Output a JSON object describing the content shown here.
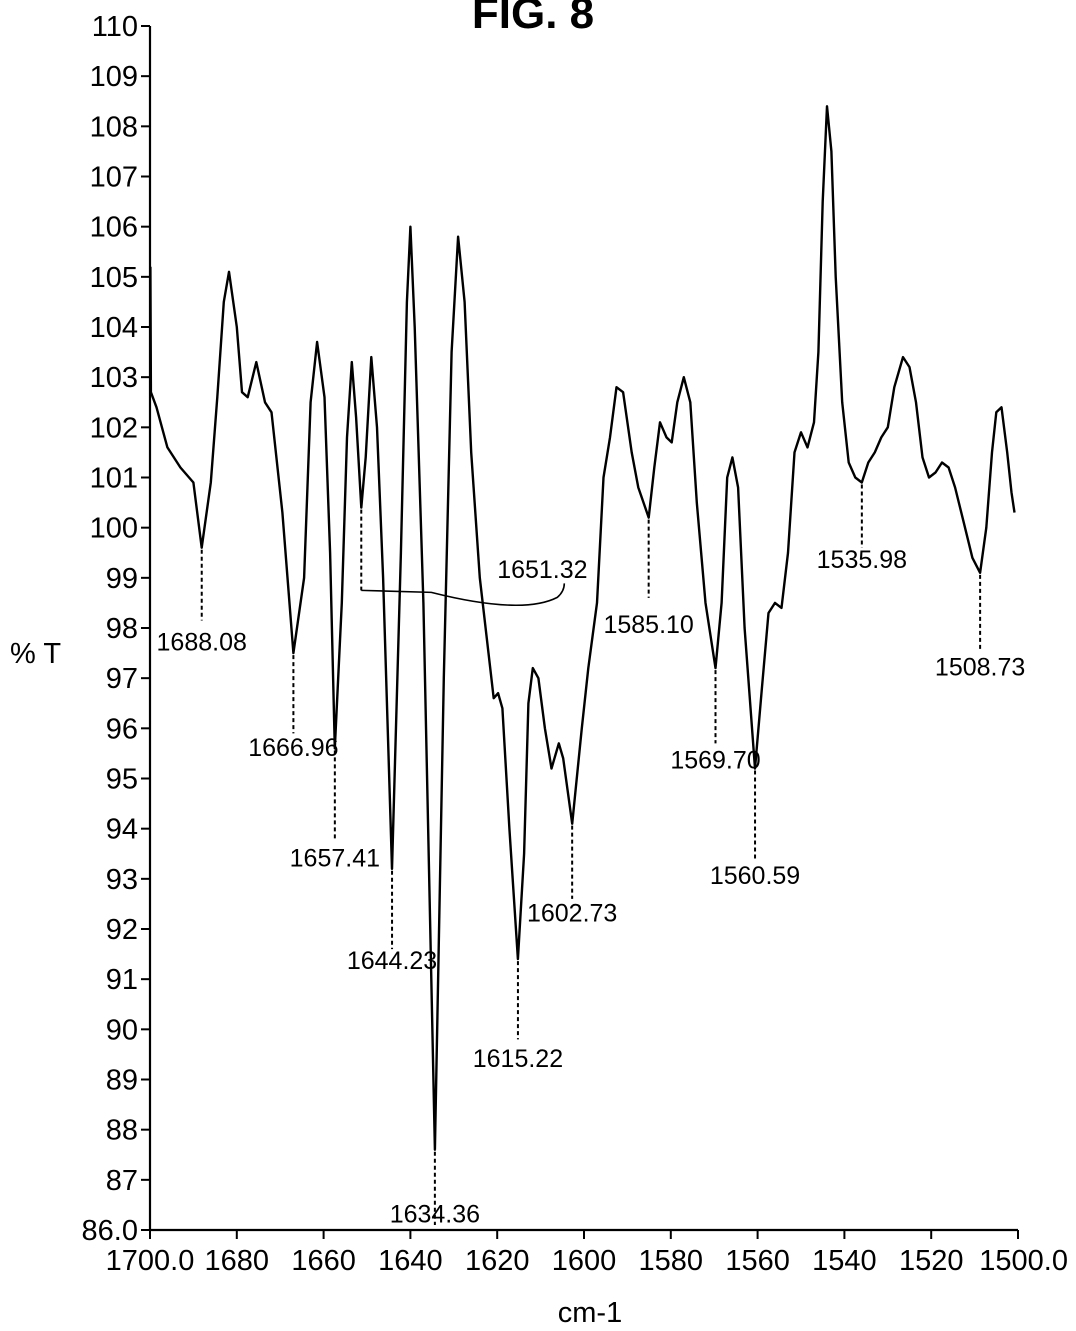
{
  "chart_data": {
    "type": "line",
    "title": "FIG. 8",
    "xlabel": "cm-1",
    "ylabel": "% T",
    "xlim": [
      1700.0,
      1500.0
    ],
    "ylim": [
      86.0,
      110
    ],
    "x_reversed": true,
    "grid": false,
    "x_tick_labels": [
      "1700.0",
      "1680",
      "1660",
      "1640",
      "1620",
      "1600",
      "1580",
      "1560",
      "1540",
      "1520",
      "1500.0"
    ],
    "x_ticks": [
      1700,
      1680,
      1660,
      1640,
      1620,
      1600,
      1580,
      1560,
      1540,
      1520,
      1500
    ],
    "y_tick_labels": [
      "86.0",
      "87",
      "88",
      "89",
      "90",
      "91",
      "92",
      "93",
      "94",
      "95",
      "96",
      "97",
      "98",
      "99",
      "100",
      "101",
      "102",
      "103",
      "104",
      "105",
      "106",
      "107",
      "108",
      "109",
      "110"
    ],
    "y_ticks": [
      86,
      87,
      88,
      89,
      90,
      91,
      92,
      93,
      94,
      95,
      96,
      97,
      98,
      99,
      100,
      101,
      102,
      103,
      104,
      105,
      106,
      107,
      108,
      109,
      110
    ],
    "series": [
      {
        "points": [
          [
            1699.9,
            105.2
          ],
          [
            1699.8,
            102.7
          ],
          [
            1698.5,
            102.4
          ],
          [
            1696.0,
            101.6
          ],
          [
            1693.0,
            101.2
          ],
          [
            1690.0,
            100.9
          ],
          [
            1688.08,
            99.6
          ],
          [
            1686.0,
            100.9
          ],
          [
            1684.5,
            102.6
          ],
          [
            1683.0,
            104.5
          ],
          [
            1681.8,
            105.1
          ],
          [
            1680.0,
            104.0
          ],
          [
            1678.8,
            102.7
          ],
          [
            1677.5,
            102.6
          ],
          [
            1675.5,
            103.3
          ],
          [
            1673.5,
            102.5
          ],
          [
            1672.0,
            102.3
          ],
          [
            1669.5,
            100.3
          ],
          [
            1666.96,
            97.5
          ],
          [
            1664.5,
            99.0
          ],
          [
            1663.0,
            102.5
          ],
          [
            1661.5,
            103.7
          ],
          [
            1659.8,
            102.6
          ],
          [
            1658.5,
            99.5
          ],
          [
            1657.41,
            95.6
          ],
          [
            1655.8,
            98.5
          ],
          [
            1654.6,
            101.8
          ],
          [
            1653.5,
            103.3
          ],
          [
            1652.5,
            102.2
          ],
          [
            1651.32,
            100.4
          ],
          [
            1650.3,
            101.4
          ],
          [
            1649.0,
            103.4
          ],
          [
            1647.7,
            102.0
          ],
          [
            1646.3,
            99.0
          ],
          [
            1644.23,
            93.2
          ],
          [
            1642.2,
            99.5
          ],
          [
            1640.8,
            104.5
          ],
          [
            1640.0,
            106.0
          ],
          [
            1639.0,
            104.0
          ],
          [
            1637.0,
            98.5
          ],
          [
            1634.36,
            87.6
          ],
          [
            1632.3,
            97.0
          ],
          [
            1630.5,
            103.5
          ],
          [
            1629.0,
            105.8
          ],
          [
            1627.5,
            104.5
          ],
          [
            1626.0,
            101.5
          ],
          [
            1624.0,
            99.0
          ],
          [
            1622.0,
            97.5
          ],
          [
            1620.8,
            96.6
          ],
          [
            1619.8,
            96.7
          ],
          [
            1618.8,
            96.4
          ],
          [
            1617.2,
            94.0
          ],
          [
            1615.22,
            91.4
          ],
          [
            1613.8,
            93.5
          ],
          [
            1612.8,
            96.5
          ],
          [
            1611.8,
            97.2
          ],
          [
            1610.5,
            97.0
          ],
          [
            1609.0,
            96.0
          ],
          [
            1607.5,
            95.2
          ],
          [
            1605.8,
            95.7
          ],
          [
            1604.8,
            95.4
          ],
          [
            1602.73,
            94.1
          ],
          [
            1600.5,
            96.0
          ],
          [
            1599.0,
            97.2
          ],
          [
            1597.0,
            98.5
          ],
          [
            1595.5,
            101.0
          ],
          [
            1594.0,
            101.8
          ],
          [
            1592.5,
            102.8
          ],
          [
            1591.0,
            102.7
          ],
          [
            1589.0,
            101.5
          ],
          [
            1587.5,
            100.8
          ],
          [
            1585.1,
            100.2
          ],
          [
            1583.8,
            101.2
          ],
          [
            1582.5,
            102.1
          ],
          [
            1581.0,
            101.8
          ],
          [
            1579.8,
            101.7
          ],
          [
            1578.5,
            102.5
          ],
          [
            1577.0,
            103.0
          ],
          [
            1575.5,
            102.5
          ],
          [
            1574.0,
            100.5
          ],
          [
            1572.0,
            98.5
          ],
          [
            1569.7,
            97.2
          ],
          [
            1568.3,
            98.5
          ],
          [
            1567.0,
            101.0
          ],
          [
            1565.8,
            101.4
          ],
          [
            1564.5,
            100.8
          ],
          [
            1563.0,
            98.0
          ],
          [
            1560.59,
            95.2
          ],
          [
            1559.0,
            96.8
          ],
          [
            1557.5,
            98.3
          ],
          [
            1556.0,
            98.5
          ],
          [
            1554.5,
            98.4
          ],
          [
            1553.0,
            99.5
          ],
          [
            1551.5,
            101.5
          ],
          [
            1550.0,
            101.9
          ],
          [
            1548.5,
            101.6
          ],
          [
            1547.0,
            102.1
          ],
          [
            1546.0,
            103.5
          ],
          [
            1545.0,
            106.5
          ],
          [
            1544.0,
            108.4
          ],
          [
            1543.0,
            107.5
          ],
          [
            1542.0,
            105.0
          ],
          [
            1540.5,
            102.5
          ],
          [
            1539.0,
            101.3
          ],
          [
            1537.5,
            101.0
          ],
          [
            1535.98,
            100.9
          ],
          [
            1534.5,
            101.3
          ],
          [
            1533.0,
            101.5
          ],
          [
            1531.5,
            101.8
          ],
          [
            1530.0,
            102.0
          ],
          [
            1528.5,
            102.8
          ],
          [
            1526.5,
            103.4
          ],
          [
            1525.0,
            103.2
          ],
          [
            1523.5,
            102.5
          ],
          [
            1522.0,
            101.4
          ],
          [
            1520.5,
            101.0
          ],
          [
            1519.0,
            101.1
          ],
          [
            1517.5,
            101.3
          ],
          [
            1516.0,
            101.2
          ],
          [
            1514.5,
            100.8
          ],
          [
            1512.5,
            100.1
          ],
          [
            1510.5,
            99.4
          ],
          [
            1508.73,
            99.1
          ],
          [
            1507.3,
            100.0
          ],
          [
            1506.0,
            101.5
          ],
          [
            1505.0,
            102.3
          ],
          [
            1503.8,
            102.4
          ],
          [
            1502.5,
            101.5
          ],
          [
            1501.5,
            100.7
          ],
          [
            1500.8,
            100.3
          ]
        ]
      }
    ],
    "peak_labels": [
      {
        "label": "1688.08",
        "x": 1688.08,
        "y": 99.6,
        "text_y": 97.55,
        "dash_to": 98.15
      },
      {
        "label": "1666.96",
        "x": 1666.96,
        "y": 97.5,
        "text_y": 95.45,
        "dash_to": 95.9
      },
      {
        "label": "1657.41",
        "x": 1657.41,
        "y": 95.6,
        "text_y": 93.25,
        "dash_to": 93.8
      },
      {
        "label": "1651.32",
        "x": 1651.32,
        "y": 100.4,
        "text_y": 99.0,
        "dash_to": 98.75,
        "leader": true
      },
      {
        "label": "1644.23",
        "x": 1644.23,
        "y": 93.2,
        "text_y": 91.2,
        "dash_to": 91.6
      },
      {
        "label": "1634.36",
        "x": 1634.36,
        "y": 87.6,
        "text_y": 86.15,
        "dash_to": 86.1
      },
      {
        "label": "1615.22",
        "x": 1615.22,
        "y": 91.4,
        "text_y": 89.25,
        "dash_to": 89.8
      },
      {
        "label": "1602.73",
        "x": 1602.73,
        "y": 94.1,
        "text_y": 92.15,
        "dash_to": 92.6
      },
      {
        "label": "1585.10",
        "x": 1585.1,
        "y": 100.2,
        "text_y": 97.9,
        "dash_to": 98.6
      },
      {
        "label": "1569.70",
        "x": 1569.7,
        "y": 97.2,
        "text_y": 95.2,
        "dash_to": 95.7
      },
      {
        "label": "1560.59",
        "x": 1560.59,
        "y": 95.2,
        "text_y": 92.9,
        "dash_to": 93.4
      },
      {
        "label": "1535.98",
        "x": 1535.98,
        "y": 100.9,
        "text_y": 99.2,
        "dash_to": 99.6
      },
      {
        "label": "1508.73",
        "x": 1508.73,
        "y": 99.1,
        "text_y": 97.05,
        "dash_to": 97.55
      }
    ]
  }
}
